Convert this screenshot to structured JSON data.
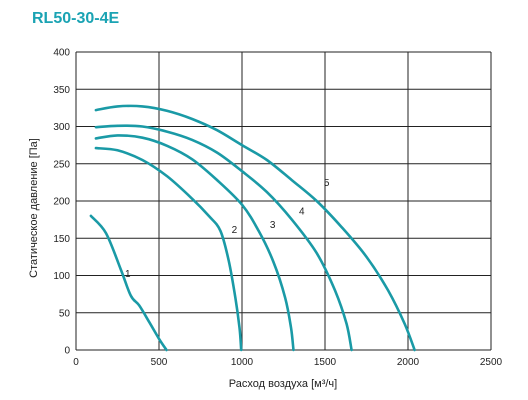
{
  "colors": {
    "title": "#1aa3b3",
    "curve": "#1a9aa6",
    "grid": "#222222"
  },
  "chart_data": {
    "type": "line",
    "title": "RL50-30-4E",
    "xlabel": "Расход воздуха [м³/ч]",
    "ylabel": "Статическое давление [Па]",
    "xlim": [
      0,
      2500
    ],
    "ylim": [
      0,
      400
    ],
    "xticks": [
      0,
      500,
      1000,
      1500,
      2000,
      2500
    ],
    "yticks": [
      0,
      50,
      100,
      150,
      200,
      250,
      300,
      350,
      400
    ],
    "grid": true,
    "series": [
      {
        "name": "1",
        "points": [
          [
            90,
            180
          ],
          [
            180,
            157
          ],
          [
            270,
            108
          ],
          [
            330,
            73
          ],
          [
            380,
            60
          ],
          [
            440,
            38
          ],
          [
            500,
            15
          ],
          [
            545,
            0
          ]
        ]
      },
      {
        "name": "2",
        "points": [
          [
            120,
            271
          ],
          [
            250,
            268
          ],
          [
            400,
            255
          ],
          [
            550,
            233
          ],
          [
            700,
            203
          ],
          [
            800,
            180
          ],
          [
            870,
            160
          ],
          [
            920,
            120
          ],
          [
            960,
            70
          ],
          [
            985,
            30
          ],
          [
            995,
            0
          ]
        ]
      },
      {
        "name": "3",
        "points": [
          [
            120,
            284
          ],
          [
            250,
            288
          ],
          [
            400,
            285
          ],
          [
            550,
            274
          ],
          [
            700,
            256
          ],
          [
            850,
            228
          ],
          [
            1000,
            195
          ],
          [
            1100,
            160
          ],
          [
            1190,
            118
          ],
          [
            1260,
            70
          ],
          [
            1295,
            30
          ],
          [
            1310,
            0
          ]
        ]
      },
      {
        "name": "4",
        "points": [
          [
            120,
            299
          ],
          [
            250,
            301
          ],
          [
            400,
            300
          ],
          [
            550,
            293
          ],
          [
            700,
            282
          ],
          [
            850,
            265
          ],
          [
            1000,
            240
          ],
          [
            1150,
            212
          ],
          [
            1300,
            175
          ],
          [
            1450,
            130
          ],
          [
            1560,
            80
          ],
          [
            1630,
            35
          ],
          [
            1660,
            0
          ]
        ]
      },
      {
        "name": "5",
        "points": [
          [
            120,
            322
          ],
          [
            250,
            327
          ],
          [
            400,
            327
          ],
          [
            550,
            321
          ],
          [
            700,
            310
          ],
          [
            850,
            295
          ],
          [
            1000,
            275
          ],
          [
            1150,
            255
          ],
          [
            1300,
            228
          ],
          [
            1450,
            200
          ],
          [
            1600,
            165
          ],
          [
            1750,
            125
          ],
          [
            1880,
            80
          ],
          [
            1980,
            35
          ],
          [
            2040,
            0
          ]
        ]
      }
    ]
  }
}
